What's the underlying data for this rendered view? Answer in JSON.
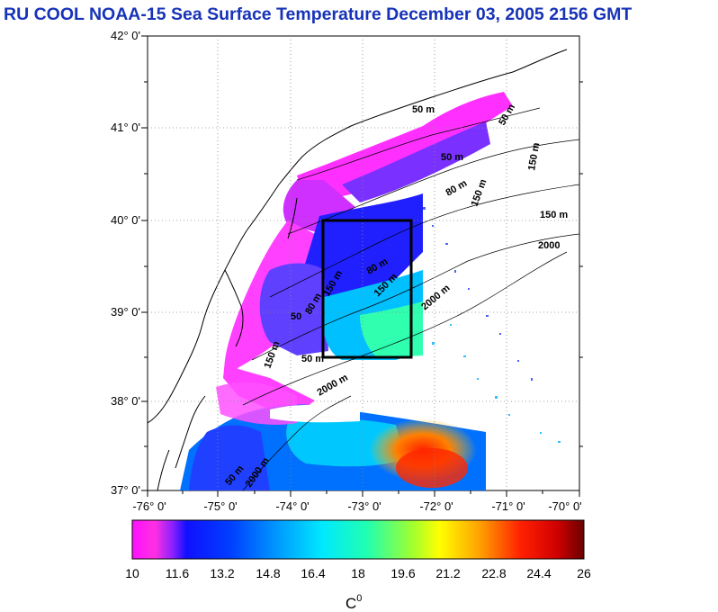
{
  "title": "RU COOL  NOAA-15 Sea Surface Temperature December 03, 2005 2156 GMT",
  "map": {
    "lat_labels": [
      "42° 0'",
      "41° 0'",
      "40° 0'",
      "39° 0'",
      "38° 0'",
      "37° 0'"
    ],
    "lon_labels": [
      "-76° 0'",
      "-75° 0'",
      "-74° 0'",
      "-73° 0'",
      "-72° 0'",
      "-71° 0'",
      "-70° 0'"
    ],
    "lat_range": [
      37,
      42
    ],
    "lon_range": [
      -76,
      -70
    ],
    "study_box": {
      "lon": [
        -73.45,
        -72.25
      ],
      "lat": [
        38.5,
        40.0
      ]
    },
    "depth_labels": [
      "50 m",
      "50 m",
      "50 m",
      "80 m",
      "150 m",
      "150 m",
      "150 m",
      "2000",
      "2000 m",
      "80 m",
      "150 m",
      "50",
      "80 m",
      "150 m",
      "50 m",
      "2000 m",
      "50 m",
      "150 m",
      "2000 m"
    ]
  },
  "colorbar": {
    "ticks": [
      "10",
      "11.6",
      "13.2",
      "14.8",
      "16.4",
      "18",
      "19.6",
      "21.2",
      "22.8",
      "24.4",
      "26"
    ],
    "range": [
      10,
      26
    ],
    "unit_base": "C",
    "unit_sup": "0",
    "colors": [
      "#ff00ff",
      "#8000ff",
      "#0000ff",
      "#0060ff",
      "#00c8ff",
      "#00ffc8",
      "#80ff00",
      "#ffff00",
      "#ff8000",
      "#ff0000",
      "#800000"
    ]
  }
}
